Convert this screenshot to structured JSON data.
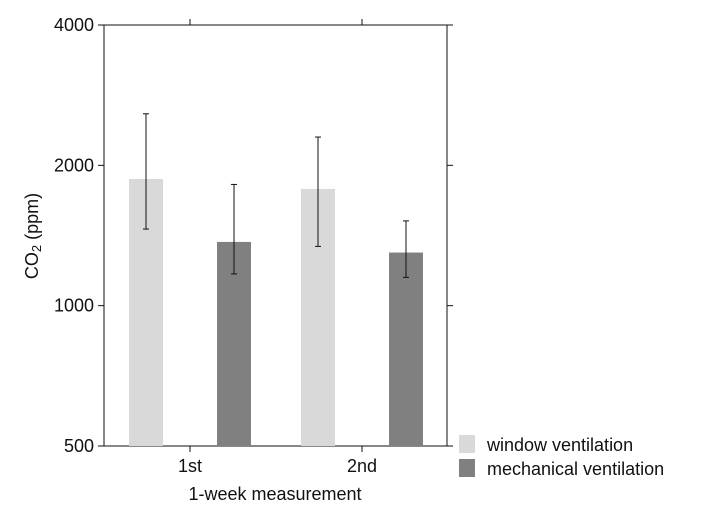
{
  "chart_data": {
    "type": "bar",
    "title": "",
    "xlabel": "1-week measurement",
    "ylabel": {
      "prefix": "CO",
      "subscript": "2",
      "suffix": " (ppm)"
    },
    "y_scale": "log",
    "ylim": [
      500,
      4000
    ],
    "yticks": [
      500,
      1000,
      2000,
      4000
    ],
    "categories": [
      "1st",
      "2nd"
    ],
    "series": [
      {
        "name": "window ventilation",
        "color": "#d9d9d9",
        "values": [
          1870,
          1780
        ],
        "error_low": [
          1460,
          1340
        ],
        "error_high": [
          2580,
          2300
        ]
      },
      {
        "name": "mechanical ventilation",
        "color": "#808080",
        "values": [
          1370,
          1300
        ],
        "error_low": [
          1170,
          1150
        ],
        "error_high": [
          1820,
          1520
        ]
      }
    ],
    "legend_position": "bottom-right",
    "grid": false
  }
}
